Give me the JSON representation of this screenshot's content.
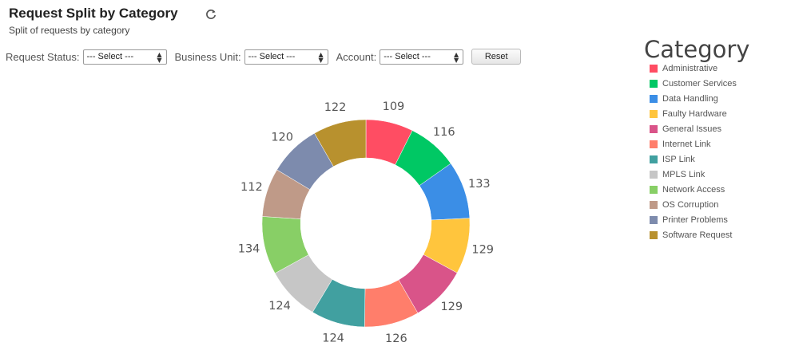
{
  "header": {
    "title": "Request Split by Category",
    "subtitle": "Split of requests by category",
    "refresh_icon": "refresh-icon"
  },
  "filters": {
    "status_label": "Request Status:",
    "status_value": "--- Select ---",
    "business_unit_label": "Business Unit:",
    "business_unit_value": "--- Select ---",
    "account_label": "Account:",
    "account_value": "--- Select ---",
    "reset_label": "Reset"
  },
  "chart_data": {
    "type": "pie",
    "variant": "donut",
    "legend_title": "Category",
    "legend_position": "right",
    "categories": [
      "Administrative",
      "Customer Services",
      "Data Handling",
      "Faulty Hardware",
      "General Issues",
      "Internet Link",
      "ISP Link",
      "MPLS Link",
      "Network Access",
      "OS Corruption",
      "Printer Problems",
      "Software Request"
    ],
    "values": [
      109,
      116,
      133,
      129,
      129,
      126,
      124,
      124,
      134,
      112,
      120,
      122
    ],
    "colors": [
      "#ff4d63",
      "#00c864",
      "#3b8ee6",
      "#ffc53d",
      "#d95489",
      "#ff7e6b",
      "#41a0a0",
      "#c6c6c6",
      "#88cf66",
      "#bf9a88",
      "#7d8bad",
      "#b8912e"
    ]
  }
}
